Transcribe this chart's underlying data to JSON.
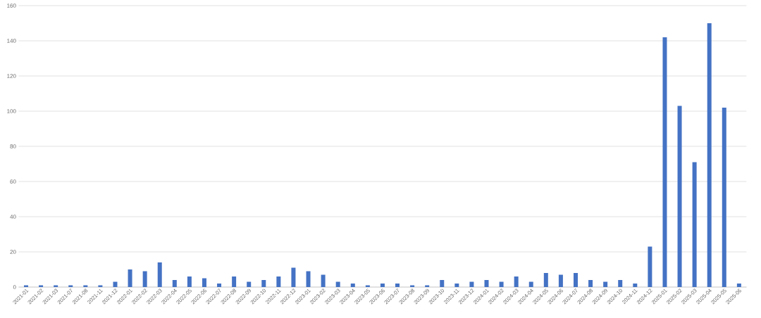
{
  "chart_data": {
    "type": "bar",
    "categories": [
      "2021-01",
      "2021-02",
      "2021-03",
      "2021-07",
      "2021-08",
      "2021-11",
      "2021-12",
      "2022-01",
      "2022-02",
      "2022-03",
      "2022-04",
      "2022-05",
      "2022-06",
      "2022-07",
      "2022-08",
      "2022-09",
      "2022-10",
      "2022-11",
      "2022-12",
      "2023-01",
      "2023-02",
      "2023-03",
      "2023-04",
      "2023-05",
      "2023-06",
      "2023-07",
      "2023-08",
      "2023-09",
      "2023-10",
      "2023-11",
      "2023-12",
      "2024-01",
      "2024-02",
      "2024-03",
      "2024-04",
      "2024-05",
      "2024-06",
      "2024-07",
      "2024-08",
      "2024-09",
      "2024-10",
      "2024-11",
      "2024-12",
      "2025-01",
      "2025-02",
      "2025-03",
      "2025-04",
      "2025-05",
      "2025-06"
    ],
    "values": [
      1,
      1,
      1,
      1,
      1,
      1,
      3,
      10,
      9,
      14,
      4,
      6,
      5,
      2,
      6,
      3,
      4,
      6,
      11,
      9,
      7,
      3,
      2,
      1,
      2,
      2,
      1,
      1,
      4,
      2,
      3,
      4,
      3,
      6,
      3,
      8,
      7,
      8,
      4,
      3,
      4,
      2,
      23,
      142,
      103,
      71,
      150,
      102,
      2
    ],
    "color": "#4472c4",
    "ylim": [
      0,
      160
    ],
    "yticks": [
      0,
      20,
      40,
      60,
      80,
      100,
      120,
      140,
      160
    ],
    "grid": "y"
  }
}
